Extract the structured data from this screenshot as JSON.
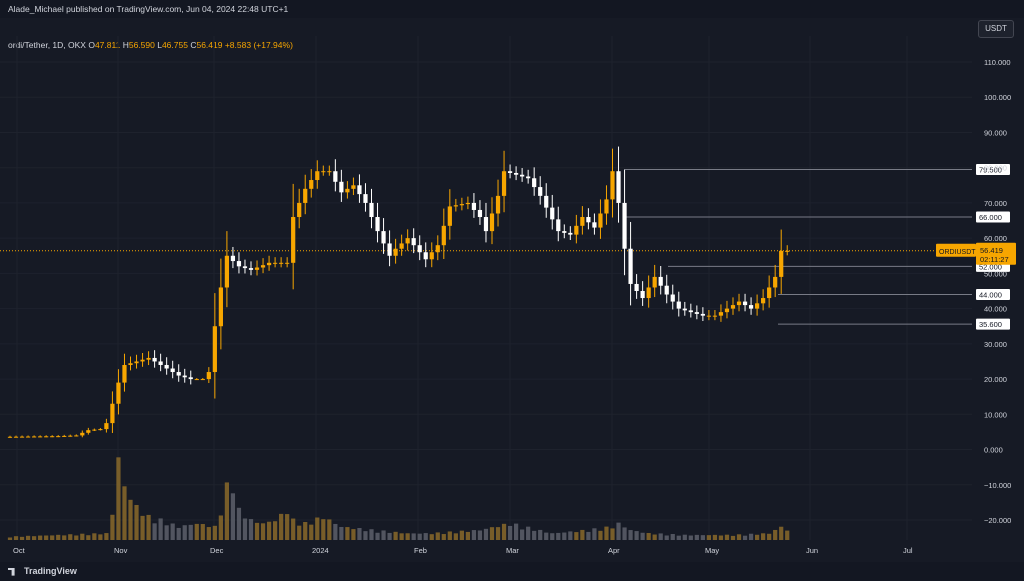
{
  "header": {
    "published_by": "Alade_Michael published on TradingView.com, Jun 04, 2024 22:48 UTC+1"
  },
  "symbol_line": {
    "symbol": "ordi/Tether, 1D, OKX",
    "o_label": "O",
    "o": "47.811",
    "h_label": "H",
    "h": "56.590",
    "l_label": "L",
    "l": "46.755",
    "c_label": "C",
    "c": "56.419",
    "change": "+8.583 (+17.94%)"
  },
  "currency_button": "USDT",
  "footer": {
    "logo_text": "TradingView"
  },
  "colors": {
    "background": "#131722",
    "up": "#f7a600",
    "down": "#ffffff",
    "grid": "#1e222d",
    "level_line": "#787b86",
    "last_price": "#f7a600"
  },
  "chart_data": {
    "type": "candlestick",
    "symbol": "ORDIUSDT",
    "interval": "1D",
    "ylim": [
      -25,
      117
    ],
    "y_ticks": [
      110,
      100,
      90,
      80,
      70,
      60,
      50,
      40,
      30,
      20,
      10,
      0,
      -10,
      -20
    ],
    "y_tick_labels": [
      "110.000",
      "100.000",
      "90.000",
      "80.000",
      "70.000",
      "60.000",
      "50.000",
      "40.000",
      "30.000",
      "20.000",
      "10.000",
      "0.000",
      "−10.000",
      "−20.000"
    ],
    "x_labels": [
      "Oct",
      "Nov",
      "Dec",
      "2024",
      "Feb",
      "Mar",
      "Apr",
      "May",
      "Jun",
      "Jul"
    ],
    "last_price": {
      "symbol_label": "ORDIUSDT",
      "price": "56.419",
      "countdown": "02:11:27",
      "value": 56.419
    },
    "horizontal_levels": [
      {
        "label": "79.500",
        "value": 79.5,
        "start": "Apr"
      },
      {
        "label": "66.000",
        "value": 66.0,
        "start": "Apr"
      },
      {
        "label": "52.000",
        "value": 52.0,
        "start": "Apr"
      },
      {
        "label": "44.000",
        "value": 44.0,
        "start": "May"
      },
      {
        "label": "35.600",
        "value": 35.6,
        "start": "May"
      }
    ],
    "price_path": [
      [
        0,
        3.6
      ],
      [
        9,
        3.8
      ],
      [
        12,
        4.0
      ],
      [
        14,
        5.5
      ],
      [
        16,
        5.8
      ],
      [
        17,
        7.5
      ],
      [
        18,
        13
      ],
      [
        19,
        19
      ],
      [
        20,
        24
      ],
      [
        22,
        25
      ],
      [
        24,
        26
      ],
      [
        26,
        24
      ],
      [
        29,
        21
      ],
      [
        31,
        20
      ],
      [
        33,
        20
      ],
      [
        34,
        22
      ],
      [
        35,
        35
      ],
      [
        36,
        46
      ],
      [
        37,
        55
      ],
      [
        39,
        52
      ],
      [
        41,
        51
      ],
      [
        44,
        53
      ],
      [
        47,
        53
      ],
      [
        48,
        66
      ],
      [
        50,
        74
      ],
      [
        52,
        79
      ],
      [
        54,
        79
      ],
      [
        56,
        73
      ],
      [
        58,
        75
      ],
      [
        60,
        70
      ],
      [
        62,
        62
      ],
      [
        64,
        55
      ],
      [
        65,
        57
      ],
      [
        67,
        60
      ],
      [
        69,
        56
      ],
      [
        70,
        54
      ],
      [
        72,
        58
      ],
      [
        74,
        69
      ],
      [
        77,
        70
      ],
      [
        79,
        66
      ],
      [
        80,
        62
      ],
      [
        82,
        72
      ],
      [
        83,
        79
      ],
      [
        85,
        78
      ],
      [
        87,
        77
      ],
      [
        89,
        72
      ],
      [
        92,
        62
      ],
      [
        94,
        61
      ],
      [
        96,
        66
      ],
      [
        98,
        63
      ],
      [
        100,
        71
      ],
      [
        101,
        79
      ],
      [
        102,
        70
      ],
      [
        103,
        57
      ],
      [
        104,
        47
      ],
      [
        106,
        43
      ],
      [
        108,
        49
      ],
      [
        110,
        44
      ],
      [
        112,
        40
      ],
      [
        114,
        39
      ],
      [
        116,
        38
      ],
      [
        118,
        38
      ],
      [
        120,
        40
      ],
      [
        122,
        42
      ],
      [
        124,
        40
      ],
      [
        126,
        43
      ],
      [
        127,
        46
      ],
      [
        128,
        49
      ],
      [
        129,
        56.4
      ]
    ],
    "volume_path": [
      [
        0,
        1
      ],
      [
        16,
        2
      ],
      [
        17,
        8
      ],
      [
        18,
        25
      ],
      [
        19,
        16
      ],
      [
        21,
        10
      ],
      [
        23,
        7
      ],
      [
        25,
        6
      ],
      [
        28,
        4
      ],
      [
        31,
        5
      ],
      [
        34,
        4
      ],
      [
        35,
        9
      ],
      [
        36,
        16
      ],
      [
        37,
        18
      ],
      [
        38,
        9
      ],
      [
        40,
        6
      ],
      [
        42,
        5
      ],
      [
        44,
        6
      ],
      [
        46,
        9
      ],
      [
        47,
        6
      ],
      [
        49,
        5
      ],
      [
        52,
        7
      ],
      [
        55,
        4
      ],
      [
        60,
        3
      ],
      [
        66,
        2
      ],
      [
        70,
        2
      ],
      [
        78,
        3
      ],
      [
        83,
        5
      ],
      [
        90,
        2
      ],
      [
        96,
        3
      ],
      [
        100,
        4
      ],
      [
        101,
        5
      ],
      [
        103,
        3
      ],
      [
        106,
        2
      ],
      [
        112,
        1.5
      ],
      [
        120,
        1.5
      ],
      [
        126,
        2
      ],
      [
        128,
        4
      ],
      [
        129,
        3
      ]
    ]
  }
}
